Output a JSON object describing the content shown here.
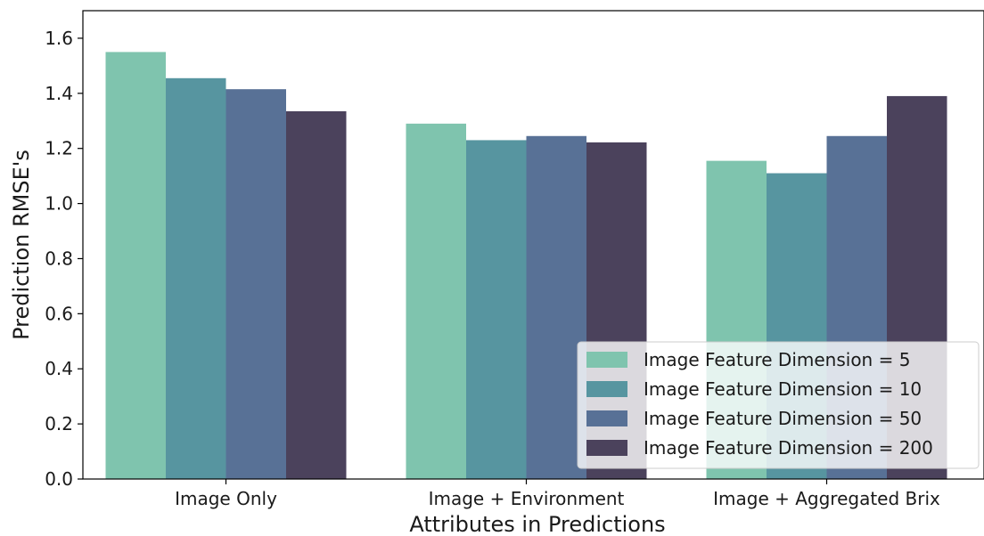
{
  "chart_data": {
    "type": "bar",
    "title": "",
    "xlabel": "Attributes in Predictions",
    "ylabel": "Prediction RMSE's",
    "categories": [
      "Image Only",
      "Image + Environment",
      "Image + Aggregated Brix"
    ],
    "ylim": [
      0,
      1.7
    ],
    "yticks": [
      0.0,
      0.2,
      0.4,
      0.6,
      0.8,
      1.0,
      1.2,
      1.4,
      1.6
    ],
    "ytick_labels": [
      "0.0",
      "0.2",
      "0.4",
      "0.6",
      "0.8",
      "1.0",
      "1.2",
      "1.4",
      "1.6"
    ],
    "grid": false,
    "legend_position": "bottom-right",
    "series": [
      {
        "name": "Image Feature Dimension = 5",
        "color": "#7fc4ae",
        "values": [
          1.55,
          1.29,
          1.155
        ]
      },
      {
        "name": "Image Feature Dimension = 10",
        "color": "#5795a0",
        "values": [
          1.455,
          1.23,
          1.11
        ]
      },
      {
        "name": "Image Feature Dimension = 50",
        "color": "#587196",
        "values": [
          1.415,
          1.245,
          1.245
        ]
      },
      {
        "name": "Image Feature Dimension = 200",
        "color": "#4b425c",
        "values": [
          1.335,
          1.222,
          1.39
        ]
      }
    ]
  }
}
